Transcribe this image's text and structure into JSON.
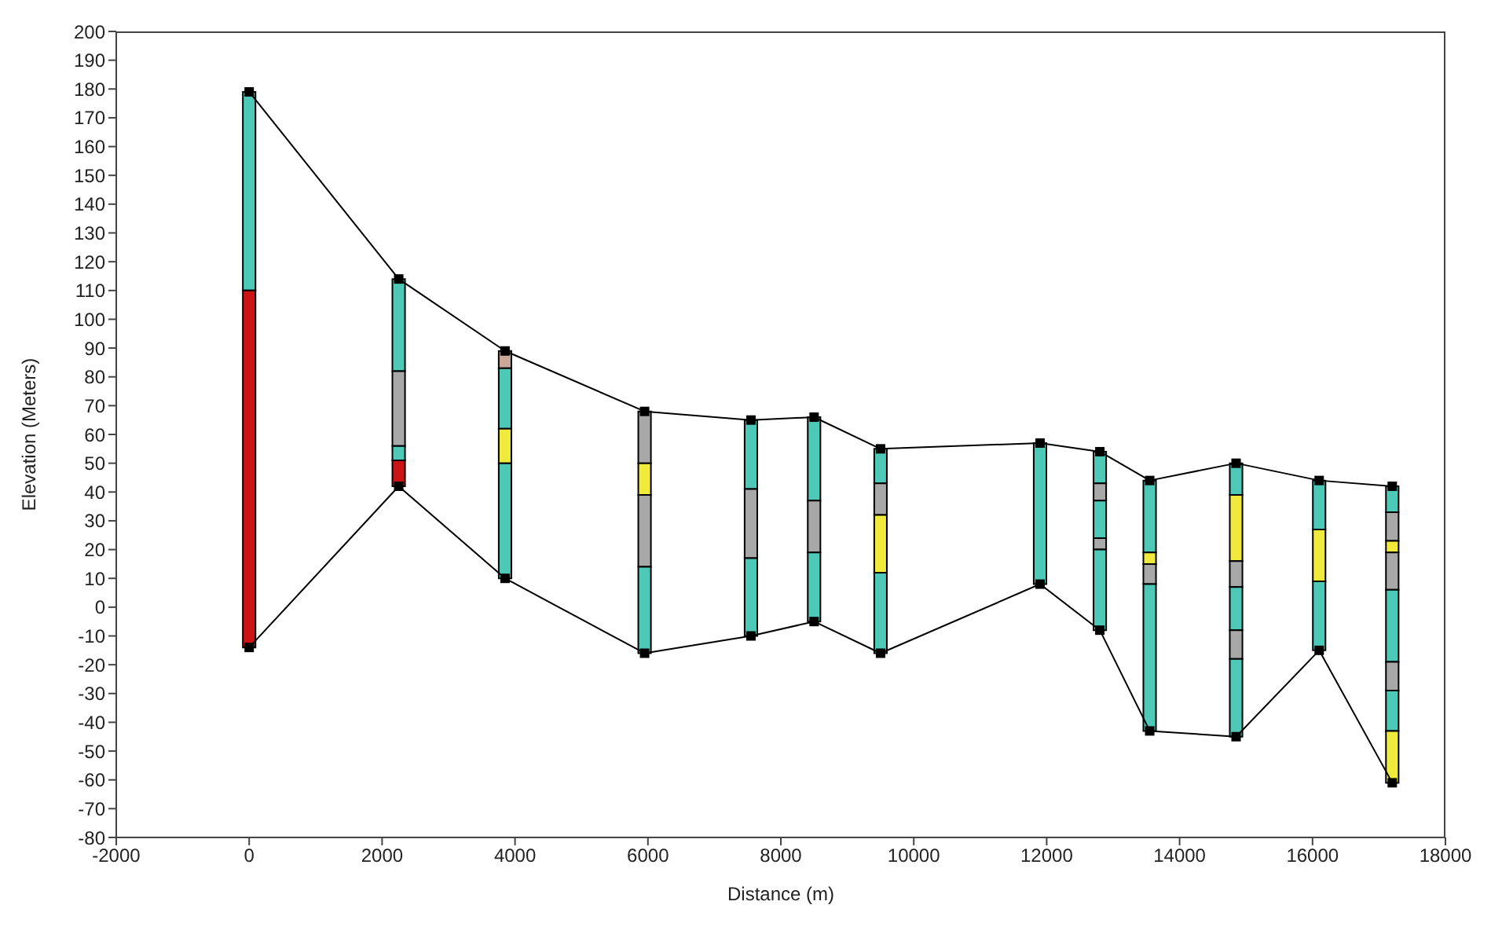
{
  "chart_data": {
    "type": "line",
    "xlabel": "Distance (m)",
    "ylabel": "Elevation (Meters)",
    "xlim": [
      -2000,
      18000
    ],
    "xticks": [
      -2000,
      0,
      2000,
      4000,
      6000,
      8000,
      10000,
      12000,
      14000,
      16000,
      18000
    ],
    "ylim": [
      -80,
      200
    ],
    "yticks": [
      -80,
      -70,
      -60,
      -50,
      -40,
      -30,
      -20,
      -10,
      0,
      10,
      20,
      30,
      40,
      50,
      60,
      70,
      80,
      90,
      100,
      110,
      120,
      130,
      140,
      150,
      160,
      170,
      180,
      190,
      200
    ],
    "grid": false,
    "series": [
      {
        "color": "#000000",
        "marker": "square",
        "x": [
          0,
          2250,
          3850,
          5950,
          7550,
          8500,
          9500,
          11900,
          12800,
          13550,
          14850,
          16100,
          17200
        ],
        "values": [
          179,
          114,
          89,
          68,
          65,
          66,
          55,
          57,
          54,
          44,
          50,
          44,
          42
        ]
      },
      {
        "color": "#000000",
        "marker": "square",
        "x": [
          0,
          2250,
          3850,
          5950,
          7550,
          8500,
          9500,
          11900,
          12800,
          13550,
          14850,
          16100,
          17200
        ],
        "values": [
          -14,
          42,
          10,
          -16,
          -10,
          -5,
          -16,
          8,
          -8,
          -43,
          -45,
          -15,
          -61
        ]
      },
      {
        "type": "bar",
        "x": [
          0,
          2250,
          3850,
          5950,
          7550,
          8500,
          9500,
          11900,
          12800,
          13550,
          14850,
          16100,
          17200
        ],
        "base": [
          110,
          82,
          83,
          50,
          41,
          37,
          43,
          8,
          43,
          19,
          39,
          27,
          33
        ],
        "values": [
          69,
          32,
          6,
          18,
          24,
          29,
          12,
          49,
          11,
          25,
          11,
          17,
          9
        ],
        "colors": [
          "#4ec9b8",
          "#4ec9b8",
          "#c9a898",
          "#a8a8a8",
          "#4ec9b8",
          "#4ec9b8",
          "#4ec9b8",
          "#4ec9b8",
          "#4ec9b8",
          "#4ec9b8",
          "#4ec9b8",
          "#4ec9b8",
          "#4ec9b8"
        ]
      },
      {
        "type": "bar",
        "x": [
          0,
          2250,
          3850,
          5950,
          7550,
          8500,
          9500,
          12800,
          13550,
          14850,
          16100,
          17200
        ],
        "base": [
          -14,
          56,
          62,
          39,
          17,
          19,
          32,
          37,
          15,
          16,
          9,
          23
        ],
        "values": [
          124,
          26,
          21,
          11,
          24,
          18,
          11,
          6,
          4,
          23,
          18,
          10
        ],
        "colors": [
          "#cc1414",
          "#a8a8a8",
          "#4ec9b8",
          "#f0ea3c",
          "#a8a8a8",
          "#a8a8a8",
          "#a8a8a8",
          "#a8a8a8",
          "#f0ea3c",
          "#f0ea3c",
          "#f0ea3c",
          "#a8a8a8"
        ]
      },
      {
        "type": "bar",
        "x": [
          2250,
          3850,
          5950,
          7550,
          8500,
          9500,
          12800,
          13550,
          14850,
          16100,
          17200
        ],
        "base": [
          51,
          50,
          14,
          -10,
          -5,
          12,
          24,
          8,
          7,
          -15,
          19
        ],
        "values": [
          5,
          12,
          25,
          27,
          24,
          20,
          13,
          7,
          9,
          24,
          4
        ],
        "colors": [
          "#4ec9b8",
          "#f0ea3c",
          "#a8a8a8",
          "#4ec9b8",
          "#4ec9b8",
          "#f0ea3c",
          "#4ec9b8",
          "#a8a8a8",
          "#a8a8a8",
          "#4ec9b8",
          "#f0ea3c"
        ]
      },
      {
        "type": "bar",
        "x": [
          2250,
          3850,
          5950,
          9500,
          12800,
          13550,
          14850,
          17200
        ],
        "base": [
          42,
          10,
          -16,
          -16,
          20,
          -43,
          -8,
          6
        ],
        "values": [
          9,
          40,
          30,
          28,
          4,
          51,
          15,
          13
        ],
        "colors": [
          "#cc1414",
          "#4ec9b8",
          "#4ec9b8",
          "#4ec9b8",
          "#a8a8a8",
          "#4ec9b8",
          "#4ec9b8",
          "#a8a8a8"
        ]
      },
      {
        "type": "bar",
        "x": [
          12800,
          14850,
          17200
        ],
        "base": [
          -8,
          -18,
          -19
        ],
        "values": [
          28,
          10,
          25
        ],
        "colors": [
          "#4ec9b8",
          "#a8a8a8",
          "#4ec9b8"
        ]
      },
      {
        "type": "bar",
        "x": [
          14850,
          17200
        ],
        "base": [
          -45,
          -29
        ],
        "values": [
          27,
          10
        ],
        "colors": [
          "#4ec9b8",
          "#a8a8a8"
        ]
      },
      {
        "type": "bar",
        "x": [
          17200
        ],
        "base": [
          -43
        ],
        "values": [
          14
        ],
        "colors": [
          "#4ec9b8"
        ]
      },
      {
        "type": "bar",
        "x": [
          17200
        ],
        "base": [
          -61
        ],
        "values": [
          18
        ],
        "colors": [
          "#f0ea3c"
        ]
      }
    ]
  }
}
